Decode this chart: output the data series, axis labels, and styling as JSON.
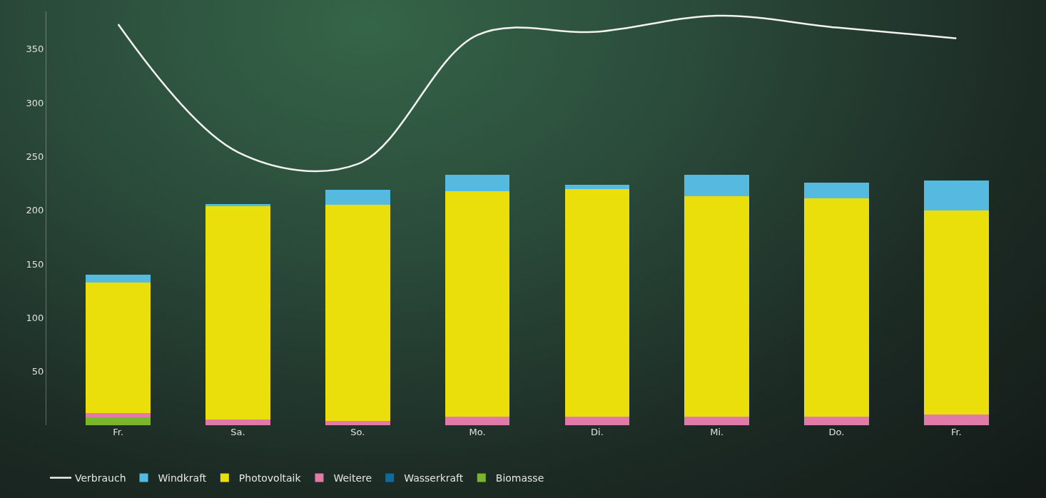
{
  "chart_data": {
    "type": "bar",
    "stacked": true,
    "categories": [
      "Fr.",
      "Sa.",
      "So.",
      "Mo.",
      "Di.",
      "Mi.",
      "Do.",
      "Fr."
    ],
    "series": [
      {
        "name": "Biomasse",
        "color": "#7ab52e",
        "values": [
          7,
          0,
          0,
          0,
          0,
          0,
          0,
          0
        ]
      },
      {
        "name": "Wasserkraft",
        "color": "#106a9a",
        "values": [
          0,
          0,
          0,
          0,
          0,
          0,
          0,
          0
        ]
      },
      {
        "name": "Weitere",
        "color": "#e07aa8",
        "values": [
          4,
          5,
          4,
          8,
          8,
          8,
          8,
          10
        ]
      },
      {
        "name": "Photovoltaik",
        "color": "#ebdf0b",
        "values": [
          122,
          199,
          201,
          210,
          212,
          205,
          203,
          190
        ]
      },
      {
        "name": "Windkraft",
        "color": "#56b9e0",
        "values": [
          7,
          2,
          14,
          15,
          4,
          20,
          15,
          28
        ]
      },
      {
        "name": "Verbrauch",
        "type": "line",
        "color": "#f2f2ee",
        "values": [
          373,
          254,
          243,
          363,
          366,
          381,
          370,
          360
        ]
      }
    ],
    "ylim": [
      0,
      385
    ],
    "yticks": [
      50,
      100,
      150,
      200,
      250,
      300,
      350
    ],
    "grid": false,
    "legend": "bottom left",
    "marker": "none",
    "line_style": "solid"
  }
}
